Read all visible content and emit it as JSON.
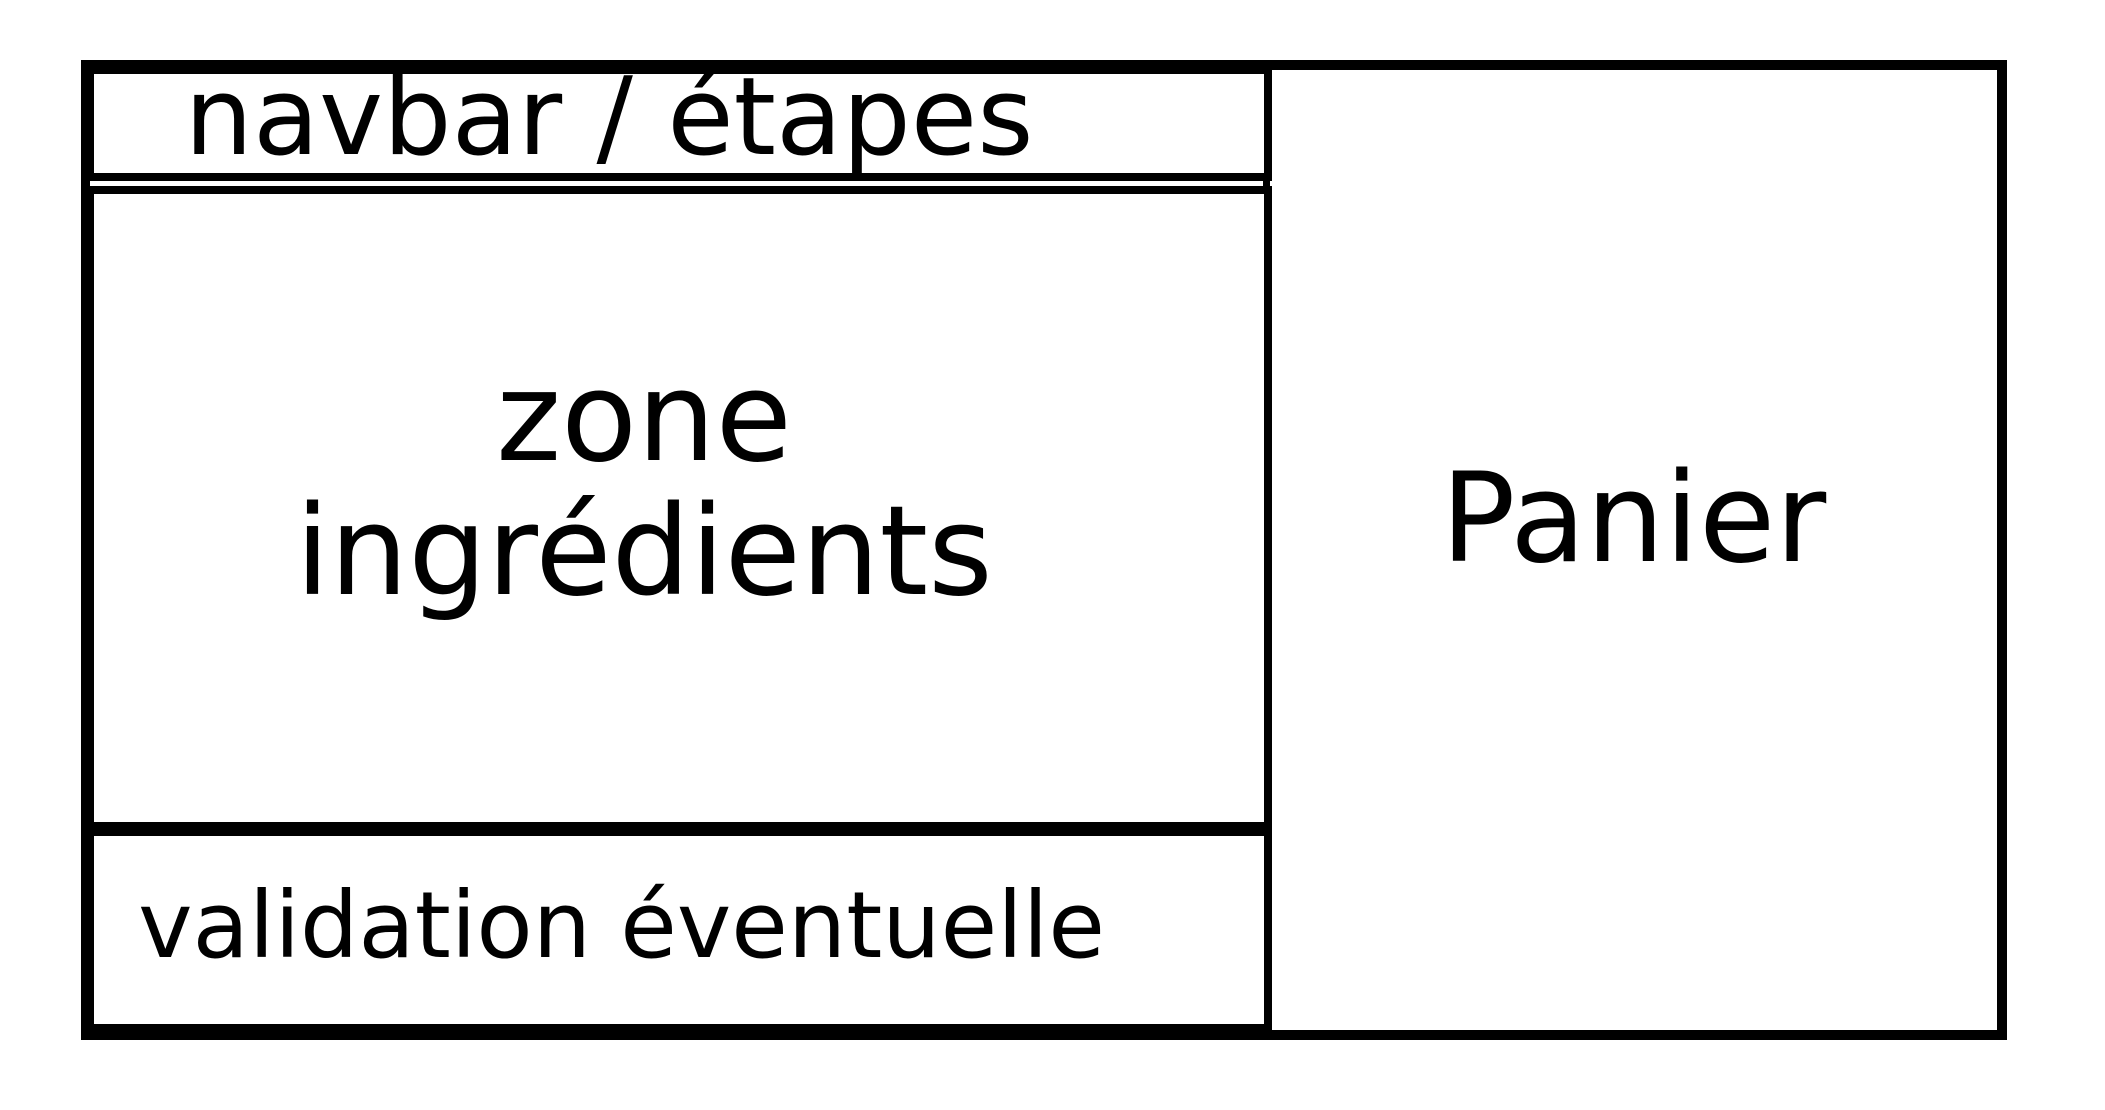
{
  "layout_diagram": {
    "navbar_label": "navbar / étapes",
    "zone_label": "zone\ningrédients",
    "validation_label": "validation éventuelle",
    "panier_label": "Panier"
  }
}
